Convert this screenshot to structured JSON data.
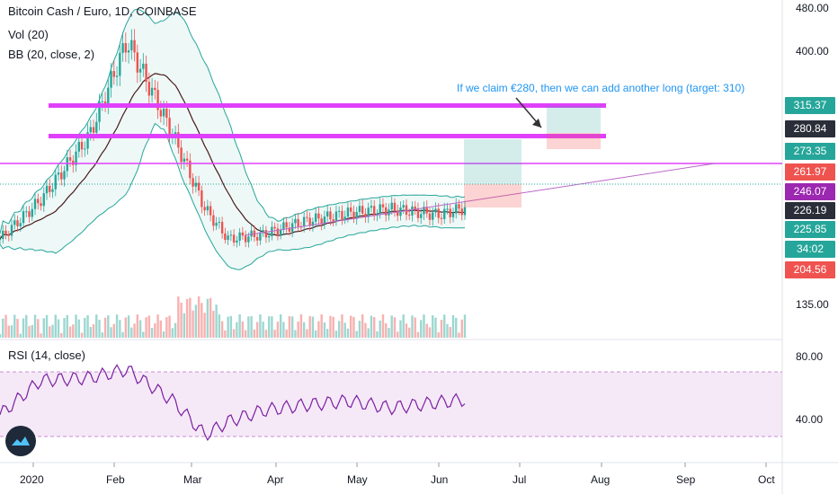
{
  "legend": {
    "symbol": "Bitcoin Cash / Euro, 1D, COINBASE",
    "volume": "Vol (20)",
    "bollinger": "BB (20, close, 2)",
    "rsi": "RSI (14, close)"
  },
  "annotation": "If we claim €280, then we can add another long (target: 310)",
  "price_axis": [
    "480.00",
    "400.00",
    "135.00"
  ],
  "rsi_axis": [
    "80.00",
    "40.00"
  ],
  "time_axis": [
    "2020",
    "Feb",
    "Mar",
    "Apr",
    "May",
    "Jun",
    "Jul",
    "Aug",
    "Sep",
    "Oct"
  ],
  "price_badges": [
    {
      "label": "315.37",
      "color": "#26a69a"
    },
    {
      "label": "280.84",
      "color": "#2a2e39"
    },
    {
      "label": "273.35",
      "color": "#26a69a"
    },
    {
      "label": "261.97",
      "color": "#ef5350"
    },
    {
      "label": "246.07",
      "color": "#9c27b0"
    },
    {
      "label": "226.19",
      "color": "#2a2e39"
    },
    {
      "label": "225.85",
      "color": "#26a69a"
    },
    {
      "label": "34:02",
      "color": "#26a69a"
    },
    {
      "label": "204.56",
      "color": "#ef5350"
    }
  ],
  "colors": {
    "up": "#26a69a",
    "down": "#ef5350",
    "bb_band": "#26a69a",
    "bb_basis": "#4a1a1a",
    "rsi": "#7b1fa2",
    "level": "#e040fb"
  },
  "chart_data": {
    "type": "candlestick",
    "title": "Bitcoin Cash / Euro, 1D, COINBASE",
    "x": [
      "2020-01-01",
      "2020-01-15",
      "2020-02-01",
      "2020-02-14",
      "2020-03-01",
      "2020-03-12",
      "2020-03-20",
      "2020-04-01",
      "2020-04-15",
      "2020-05-01",
      "2020-05-15",
      "2020-06-01",
      "2020-06-10"
    ],
    "close": [
      210,
      255,
      330,
      440,
      330,
      245,
      210,
      215,
      230,
      240,
      245,
      238,
      246
    ],
    "levels": [
      280.84,
      261.97,
      315.37
    ],
    "rsi": [
      45,
      70,
      72,
      78,
      55,
      30,
      40,
      48,
      52,
      55,
      50,
      54,
      56
    ],
    "rsi_bounds": [
      70,
      30
    ],
    "ylim": [
      135,
      480
    ]
  }
}
